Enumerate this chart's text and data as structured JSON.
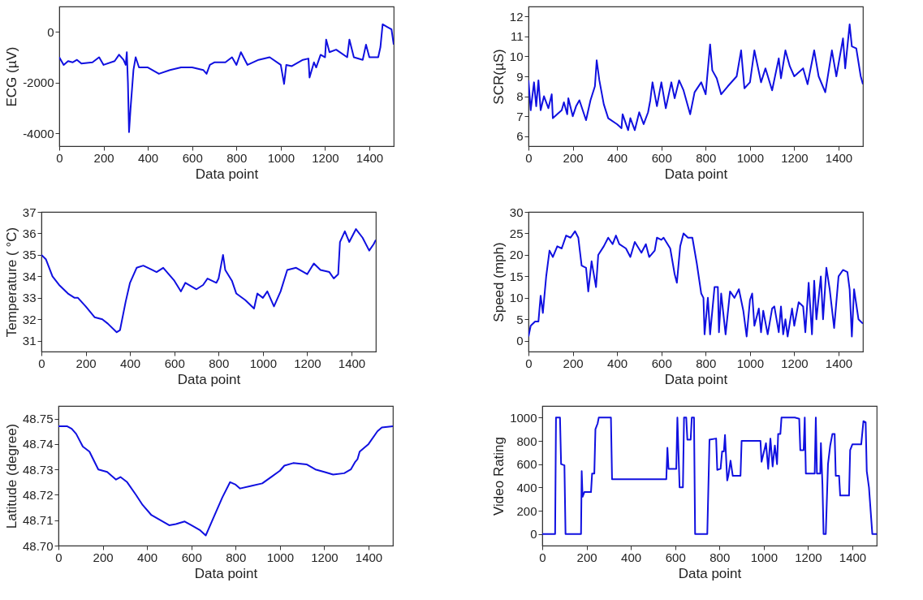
{
  "chart_data": [
    {
      "type": "line",
      "xlabel": "Data point",
      "ylabel": "ECG (µV)",
      "xlim": [
        0,
        1510
      ],
      "ylim": [
        -4500,
        1000
      ],
      "xticks": [
        0,
        200,
        400,
        600,
        800,
        1000,
        1200,
        1400
      ],
      "yticks": [
        -4000,
        -2000,
        0
      ],
      "grid": false,
      "x": [
        0,
        20,
        40,
        60,
        80,
        100,
        150,
        180,
        200,
        250,
        270,
        290,
        300,
        305,
        310,
        315,
        322,
        335,
        345,
        360,
        400,
        450,
        500,
        550,
        600,
        650,
        665,
        680,
        700,
        750,
        780,
        800,
        820,
        850,
        900,
        950,
        1000,
        1015,
        1025,
        1050,
        1100,
        1125,
        1130,
        1150,
        1160,
        1180,
        1200,
        1205,
        1220,
        1250,
        1300,
        1310,
        1330,
        1370,
        1385,
        1400,
        1440,
        1450,
        1460,
        1480,
        1500,
        1510
      ],
      "series": [
        {
          "color": "#1010e0",
          "values": [
            -1000,
            -1300,
            -1150,
            -1200,
            -1100,
            -1250,
            -1200,
            -1000,
            -1300,
            -1150,
            -900,
            -1100,
            -1300,
            -800,
            -2000,
            -3950,
            -3000,
            -1500,
            -1000,
            -1400,
            -1400,
            -1650,
            -1500,
            -1400,
            -1400,
            -1500,
            -1650,
            -1300,
            -1200,
            -1200,
            -1000,
            -1300,
            -800,
            -1300,
            -1100,
            -1000,
            -1300,
            -2050,
            -1300,
            -1350,
            -1100,
            -1050,
            -1800,
            -1200,
            -1400,
            -900,
            -1000,
            -300,
            -800,
            -700,
            -1000,
            -300,
            -1000,
            -1100,
            -500,
            -1000,
            -1000,
            -600,
            300,
            200,
            100,
            -500
          ]
        }
      ]
    },
    {
      "type": "line",
      "xlabel": "Data point",
      "ylabel": "SCR(µS)",
      "xlim": [
        0,
        1510
      ],
      "ylim": [
        5.5,
        12.5
      ],
      "xticks": [
        0,
        200,
        400,
        600,
        800,
        1000,
        1200,
        1400
      ],
      "yticks": [
        6,
        7,
        8,
        9,
        10,
        11,
        12
      ],
      "grid": false,
      "x": [
        0,
        10,
        25,
        35,
        45,
        55,
        70,
        90,
        105,
        110,
        150,
        160,
        175,
        180,
        200,
        215,
        230,
        260,
        280,
        300,
        308,
        320,
        340,
        360,
        400,
        420,
        425,
        450,
        460,
        480,
        500,
        520,
        540,
        550,
        560,
        580,
        600,
        620,
        645,
        660,
        680,
        700,
        730,
        750,
        780,
        800,
        820,
        830,
        850,
        870,
        900,
        940,
        960,
        975,
        1000,
        1020,
        1050,
        1070,
        1100,
        1130,
        1140,
        1160,
        1180,
        1200,
        1240,
        1260,
        1290,
        1310,
        1340,
        1370,
        1390,
        1420,
        1430,
        1450,
        1460,
        1480,
        1500,
        1510
      ],
      "series": [
        {
          "color": "#1010e0",
          "values": [
            8.8,
            7.3,
            8.7,
            7.5,
            8.8,
            7.3,
            8.0,
            7.4,
            8.1,
            6.9,
            7.3,
            7.7,
            7.1,
            7.9,
            7.0,
            7.5,
            7.8,
            6.8,
            7.8,
            8.5,
            9.8,
            8.8,
            7.6,
            6.9,
            6.6,
            6.4,
            7.1,
            6.3,
            6.9,
            6.3,
            7.2,
            6.6,
            7.2,
            7.8,
            8.7,
            7.5,
            8.7,
            7.4,
            8.7,
            7.9,
            8.8,
            8.3,
            7.1,
            8.2,
            8.7,
            8.1,
            10.6,
            9.3,
            8.9,
            8.1,
            8.5,
            9.0,
            10.3,
            8.4,
            8.7,
            10.3,
            8.7,
            9.4,
            8.3,
            9.9,
            8.9,
            10.3,
            9.5,
            9.0,
            9.4,
            8.6,
            10.3,
            9.0,
            8.2,
            10.3,
            9.0,
            10.9,
            9.4,
            11.6,
            10.5,
            10.4,
            9.0,
            8.6
          ]
        }
      ]
    },
    {
      "type": "line",
      "xlabel": "Data point",
      "ylabel": "Temperature ( °C)",
      "xlim": [
        0,
        1510
      ],
      "ylim": [
        30.5,
        37
      ],
      "xticks": [
        0,
        200,
        400,
        600,
        800,
        1000,
        1200,
        1400
      ],
      "yticks": [
        31,
        32,
        33,
        34,
        35,
        36,
        37
      ],
      "grid": false,
      "x": [
        0,
        20,
        50,
        80,
        120,
        150,
        165,
        200,
        240,
        275,
        300,
        340,
        355,
        380,
        400,
        430,
        460,
        500,
        520,
        550,
        600,
        630,
        650,
        700,
        730,
        750,
        790,
        800,
        820,
        830,
        860,
        880,
        920,
        960,
        975,
        1000,
        1020,
        1050,
        1080,
        1110,
        1150,
        1200,
        1230,
        1260,
        1300,
        1320,
        1340,
        1348,
        1370,
        1390,
        1420,
        1450,
        1480,
        1500,
        1510
      ],
      "series": [
        {
          "color": "#1010e0",
          "values": [
            35.0,
            34.8,
            34.0,
            33.6,
            33.2,
            33.0,
            33.0,
            32.6,
            32.1,
            32.0,
            31.8,
            31.4,
            31.5,
            32.8,
            33.7,
            34.4,
            34.5,
            34.3,
            34.2,
            34.4,
            33.8,
            33.3,
            33.7,
            33.4,
            33.6,
            33.9,
            33.7,
            33.9,
            35.0,
            34.3,
            33.8,
            33.2,
            32.9,
            32.5,
            33.2,
            33.0,
            33.3,
            32.6,
            33.3,
            34.3,
            34.4,
            34.1,
            34.6,
            34.3,
            34.2,
            33.9,
            34.1,
            35.6,
            36.1,
            35.6,
            36.2,
            35.8,
            35.2,
            35.5,
            35.7
          ]
        }
      ]
    },
    {
      "type": "line",
      "xlabel": "Data point",
      "ylabel": "Speed (mph)",
      "xlim": [
        0,
        1510
      ],
      "ylim": [
        -2.5,
        30
      ],
      "xticks": [
        0,
        200,
        400,
        600,
        800,
        1000,
        1200,
        1400
      ],
      "yticks": [
        0,
        5,
        10,
        15,
        20,
        25,
        30
      ],
      "grid": false,
      "x": [
        0,
        10,
        30,
        45,
        55,
        65,
        80,
        95,
        110,
        130,
        150,
        170,
        190,
        210,
        225,
        240,
        260,
        270,
        285,
        305,
        315,
        340,
        360,
        380,
        395,
        410,
        440,
        460,
        480,
        510,
        530,
        545,
        570,
        580,
        600,
        610,
        640,
        660,
        670,
        685,
        700,
        720,
        740,
        760,
        780,
        790,
        795,
        810,
        820,
        840,
        855,
        860,
        870,
        890,
        910,
        930,
        950,
        970,
        985,
        1000,
        1010,
        1020,
        1040,
        1050,
        1060,
        1080,
        1100,
        1110,
        1130,
        1140,
        1150,
        1160,
        1170,
        1190,
        1200,
        1220,
        1240,
        1250,
        1265,
        1280,
        1290,
        1300,
        1320,
        1330,
        1345,
        1360,
        1380,
        1400,
        1420,
        1440,
        1450,
        1460,
        1470,
        1490,
        1510
      ],
      "series": [
        {
          "color": "#1010e0",
          "values": [
            1,
            3.5,
            4.5,
            4.5,
            10.5,
            6.5,
            15,
            21,
            19.5,
            22,
            21.5,
            24.5,
            24,
            25.5,
            24,
            17.5,
            17,
            11.5,
            18.5,
            12.5,
            20,
            22,
            24,
            22.5,
            24.5,
            22.5,
            21.5,
            19.5,
            23,
            20.5,
            22.5,
            19.5,
            21,
            24,
            23.5,
            24,
            21.5,
            15.5,
            13.5,
            22,
            25,
            24,
            24,
            18,
            11,
            10,
            1.5,
            10,
            1.5,
            12.5,
            12.5,
            2,
            11,
            1.5,
            11.5,
            10,
            12,
            7,
            1,
            9.5,
            11,
            3.5,
            7.5,
            2,
            7,
            1.5,
            7.5,
            8,
            2,
            8,
            1.5,
            5,
            1,
            7.5,
            3.5,
            9,
            8,
            2,
            13.5,
            1.5,
            14,
            5,
            15,
            5,
            17,
            12,
            3,
            15,
            16.5,
            16,
            12,
            1,
            12,
            5,
            4
          ]
        }
      ]
    },
    {
      "type": "line",
      "xlabel": "Data point",
      "ylabel": "Latitude (degree)",
      "xlim": [
        0,
        1510
      ],
      "ylim": [
        48.7,
        48.755
      ],
      "xticks": [
        0,
        200,
        400,
        600,
        800,
        1000,
        1200,
        1400
      ],
      "yticks": [
        {
          "value": 48.7,
          "label": "48.70"
        },
        48.71,
        48.72,
        48.73,
        48.74,
        48.75
      ],
      "grid": false,
      "x": [
        0,
        40,
        60,
        80,
        110,
        140,
        180,
        220,
        260,
        280,
        310,
        350,
        380,
        420,
        460,
        500,
        530,
        570,
        600,
        640,
        665,
        700,
        740,
        775,
        800,
        820,
        870,
        920,
        960,
        1000,
        1020,
        1060,
        1120,
        1160,
        1200,
        1240,
        1290,
        1320,
        1340,
        1350,
        1360,
        1400,
        1440,
        1460,
        1510
      ],
      "series": [
        {
          "color": "#1010e0",
          "values": [
            48.747,
            48.747,
            48.746,
            48.744,
            48.739,
            48.737,
            48.73,
            48.729,
            48.726,
            48.727,
            48.725,
            48.72,
            48.716,
            48.712,
            48.71,
            48.708,
            48.7085,
            48.7095,
            48.708,
            48.706,
            48.704,
            48.711,
            48.719,
            48.725,
            48.724,
            48.7225,
            48.7235,
            48.7245,
            48.727,
            48.7295,
            48.7315,
            48.7325,
            48.732,
            48.73,
            48.729,
            48.728,
            48.7285,
            48.73,
            48.733,
            48.734,
            48.737,
            48.74,
            48.745,
            48.7465,
            48.747
          ]
        }
      ]
    },
    {
      "type": "line",
      "xlabel": "Data point",
      "ylabel": "Video Rating",
      "xlim": [
        0,
        1510
      ],
      "ylim": [
        -100,
        1100
      ],
      "xticks": [
        0,
        200,
        400,
        600,
        800,
        1000,
        1200,
        1400
      ],
      "yticks": [
        0,
        200,
        400,
        600,
        800,
        1000
      ],
      "grid": false,
      "x": [
        0,
        58,
        62,
        80,
        85,
        100,
        105,
        175,
        178,
        182,
        190,
        220,
        225,
        235,
        240,
        250,
        255,
        310,
        315,
        560,
        565,
        570,
        605,
        610,
        620,
        635,
        640,
        650,
        655,
        670,
        675,
        685,
        690,
        745,
        755,
        785,
        790,
        805,
        812,
        820,
        825,
        835,
        840,
        850,
        860,
        895,
        900,
        985,
        990,
        1000,
        1010,
        1020,
        1030,
        1040,
        1050,
        1060,
        1065,
        1075,
        1080,
        1140,
        1160,
        1165,
        1180,
        1185,
        1190,
        1230,
        1235,
        1240,
        1255,
        1258,
        1265,
        1270,
        1280,
        1290,
        1300,
        1310,
        1320,
        1325,
        1340,
        1345,
        1385,
        1390,
        1400,
        1440,
        1450,
        1460,
        1465,
        1475,
        1490,
        1510
      ],
      "series": [
        {
          "color": "#1010e0",
          "values": [
            0,
            0,
            1000,
            1000,
            600,
            590,
            0,
            0,
            540,
            320,
            360,
            360,
            520,
            520,
            900,
            950,
            1000,
            1000,
            470,
            470,
            740,
            560,
            560,
            1000,
            400,
            400,
            1000,
            1000,
            810,
            810,
            1000,
            1000,
            0,
            0,
            810,
            820,
            550,
            560,
            710,
            710,
            850,
            460,
            500,
            630,
            500,
            500,
            800,
            800,
            620,
            700,
            780,
            560,
            820,
            580,
            760,
            600,
            860,
            860,
            1000,
            1000,
            990,
            720,
            720,
            1000,
            520,
            520,
            1000,
            520,
            520,
            780,
            420,
            0,
            0,
            600,
            760,
            860,
            860,
            500,
            500,
            330,
            330,
            720,
            770,
            770,
            970,
            960,
            540,
            400,
            0,
            0
          ]
        }
      ]
    }
  ]
}
